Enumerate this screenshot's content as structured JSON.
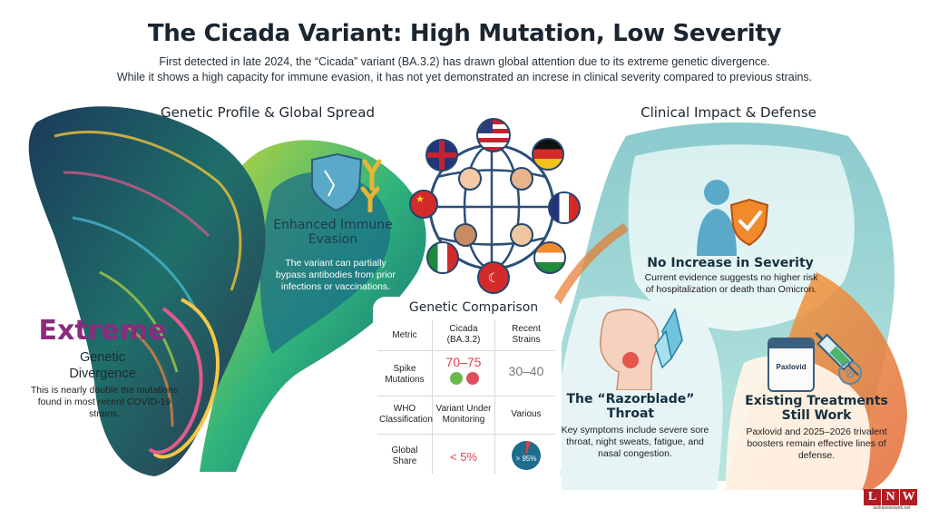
{
  "title": "The Cicada Variant: High Mutation, Low Severity",
  "subtitle_line1": "First detected in late 2024, the “Cicada” variant (BA.3.2) has drawn global attention due to its extreme genetic divergence.",
  "subtitle_line2": "While it shows a high capacity for immune evasion, it has not yet demonstrated an increse in clinical severity compared to previous strains.",
  "left_section": {
    "heading": "Genetic Profile & Global Spread",
    "extreme": {
      "word": "Extreme",
      "label1": "Genetic",
      "label2": "Divergence",
      "note": "This is nearly double the mutations found in most recent COVID-19 strains."
    },
    "immune": {
      "title": "Enhanced Immune Evasion",
      "note": "The variant can partially bypass antibodies from prior infections or vaccinations."
    }
  },
  "comparison": {
    "title": "Genetic Comparison",
    "headers": [
      "Metric",
      "Cicada (BA.3.2)",
      "Recent Strains"
    ],
    "rows": [
      {
        "metric": "Spike Mutations",
        "cicada": "70–75",
        "recent": "30–40"
      },
      {
        "metric": "WHO Classification",
        "cicada": "Variant Under Monitoring",
        "recent": "Various"
      },
      {
        "metric": "Global Share",
        "cicada": "< 5%",
        "recent": "> 95%"
      }
    ],
    "share_cicada": 0.05,
    "share_recent": 0.95
  },
  "right_section": {
    "heading": "Clinical Impact & Defense",
    "severity": {
      "title": "No Increase in Severity",
      "note": "Current evidence suggests no higher risk of hospitalization or death than Omicron."
    },
    "throat": {
      "title": "The “Razorblade” Throat",
      "note": "Key symptoms include severe sore throat, night sweats, fatigue, and nasal congestion."
    },
    "treatments": {
      "title": "Existing Treatments Still Work",
      "note": "Paxlovid and 2025–2026 trivalent boosters remain effective lines of defense.",
      "box_label": "Paxlovid"
    }
  },
  "logo": {
    "letters": [
      "L",
      "N",
      "W"
    ],
    "url": "lankanewsweb.net"
  },
  "colors": {
    "accent_purple": "#8a2b7e",
    "spike_red": "#e0404a",
    "teal": "#2aa3a6",
    "orange": "#ea7a2c",
    "logo_red": "#b01e24"
  }
}
